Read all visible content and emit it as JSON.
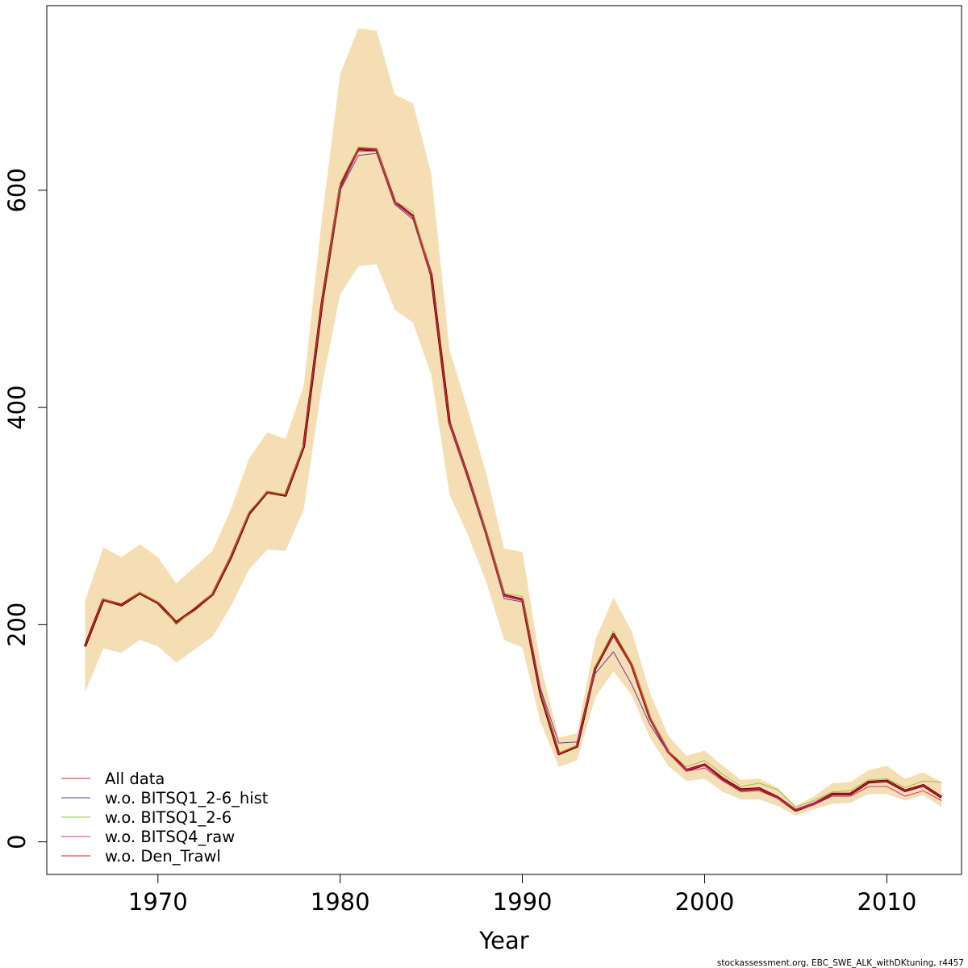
{
  "chart_data": {
    "type": "line",
    "xlabel": "Year",
    "ylabel": "",
    "xlim": [
      1963.9,
      2014.1
    ],
    "ylim": [
      -30,
      770
    ],
    "x_ticks": [
      1970,
      1980,
      1990,
      2000,
      2010
    ],
    "y_ticks": [
      0,
      200,
      400,
      600
    ],
    "x": [
      1966,
      1967,
      1968,
      1969,
      1970,
      1971,
      1972,
      1973,
      1974,
      1975,
      1976,
      1977,
      1978,
      1979,
      1980,
      1981,
      1982,
      1983,
      1984,
      1985,
      1986,
      1987,
      1988,
      1989,
      1990,
      1991,
      1992,
      1993,
      1994,
      1995,
      1996,
      1997,
      1998,
      1999,
      2000,
      2001,
      2002,
      2003,
      2004,
      2005,
      2006,
      2007,
      2008,
      2009,
      2010,
      2011,
      2012,
      2013
    ],
    "band": {
      "color": "#F5DEB3",
      "upper": [
        222,
        271,
        262,
        274,
        262,
        238,
        253,
        268,
        306,
        353,
        377,
        371,
        420,
        574,
        707,
        749,
        747,
        688,
        680,
        615,
        453,
        398,
        340,
        270,
        267,
        163,
        96,
        100,
        186,
        225,
        194,
        137,
        98,
        79,
        84,
        70,
        57,
        58,
        50,
        33,
        42,
        54,
        55,
        66,
        70,
        58,
        64,
        55
      ],
      "lower": [
        138,
        178,
        174,
        186,
        180,
        165,
        177,
        189,
        217,
        251,
        269,
        268,
        306,
        420,
        504,
        530,
        532,
        490,
        478,
        430,
        320,
        283,
        240,
        186,
        179,
        110,
        69,
        75,
        133,
        157,
        135,
        96,
        70,
        56,
        58,
        46,
        39,
        39,
        33,
        24,
        30,
        35,
        36,
        44,
        44,
        38,
        43,
        32
      ]
    },
    "series": [
      {
        "name": "All data",
        "color": "#E41A1C",
        "width": 1.2,
        "values": [
          180,
          223,
          218,
          229,
          220,
          202,
          214,
          228,
          262,
          302,
          322,
          319,
          364,
          496,
          603,
          638,
          637,
          589,
          576,
          522,
          386,
          337,
          285,
          227,
          223,
          136,
          81,
          88,
          160,
          191,
          163,
          114,
          83,
          66,
          71,
          58,
          48,
          49,
          41,
          29,
          35,
          44,
          44,
          55,
          56,
          47,
          52,
          41
        ]
      },
      {
        "name": "w.o. BITSQ1_2-6_hist",
        "color": "#6A3D9A",
        "width": 1.0,
        "values": [
          180,
          223,
          218,
          229,
          220,
          202,
          214,
          228,
          262,
          302,
          322,
          319,
          364,
          494,
          600,
          632,
          634,
          587,
          573,
          520,
          384,
          335,
          283,
          224,
          221,
          141,
          91,
          92,
          155,
          175,
          145,
          108,
          82,
          67,
          70,
          58,
          48,
          49,
          41,
          30,
          36,
          44,
          44,
          55,
          56,
          47,
          52,
          41
        ]
      },
      {
        "name": "w.o. BITSQ1_2-6",
        "color": "#8DC63F",
        "width": 1.0,
        "values": [
          180,
          224,
          218,
          230,
          221,
          200,
          214,
          229,
          263,
          304,
          323,
          320,
          366,
          498,
          607,
          640,
          639,
          590,
          580,
          523,
          387,
          338,
          287,
          229,
          226,
          138,
          82,
          89,
          162,
          194,
          165,
          116,
          84,
          69,
          75,
          62,
          51,
          54,
          48,
          32,
          38,
          46,
          47,
          57,
          58,
          50,
          56,
          55
        ]
      },
      {
        "name": "w.o. BITSQ4_raw",
        "color": "#E7298A",
        "width": 1.0,
        "values": [
          180,
          223,
          218,
          229,
          220,
          202,
          214,
          228,
          262,
          302,
          322,
          319,
          364,
          496,
          602,
          636,
          636,
          588,
          575,
          521,
          385,
          336,
          285,
          226,
          222,
          136,
          81,
          88,
          160,
          190,
          162,
          113,
          82,
          65,
          68,
          56,
          46,
          47,
          40,
          29,
          34,
          42,
          42,
          51,
          51,
          42,
          47,
          38
        ]
      },
      {
        "name": "w.o. Den_Trawl",
        "color": "#E41A1C",
        "width": 1.2,
        "values": [
          180,
          223,
          218,
          229,
          220,
          202,
          214,
          228,
          262,
          302,
          322,
          319,
          364,
          496,
          603,
          638,
          637,
          589,
          576,
          522,
          386,
          337,
          285,
          227,
          223,
          136,
          81,
          88,
          160,
          191,
          163,
          114,
          83,
          66,
          71,
          58,
          48,
          49,
          41,
          29,
          35,
          44,
          44,
          55,
          56,
          47,
          52,
          41
        ]
      }
    ],
    "main_line": {
      "color": "#4B0000",
      "values": [
        180,
        223,
        218,
        229,
        220,
        202,
        214,
        228,
        262,
        302,
        322,
        319,
        364,
        496,
        603,
        638,
        637,
        589,
        576,
        522,
        386,
        337,
        285,
        227,
        223,
        136,
        81,
        88,
        160,
        191,
        163,
        114,
        83,
        66,
        71,
        58,
        48,
        49,
        41,
        29,
        35,
        44,
        44,
        55,
        56,
        47,
        52,
        41
      ]
    },
    "legend": {
      "placement": "bottom-left",
      "entries": [
        "All data",
        "w.o. BITSQ1_2-6_hist",
        "w.o. BITSQ1_2-6",
        "w.o. BITSQ4_raw",
        "w.o. Den_Trawl"
      ]
    },
    "grid": false
  },
  "footer": "stockassessment.org, EBC_SWE_ALK_withDKtuning, r4457"
}
